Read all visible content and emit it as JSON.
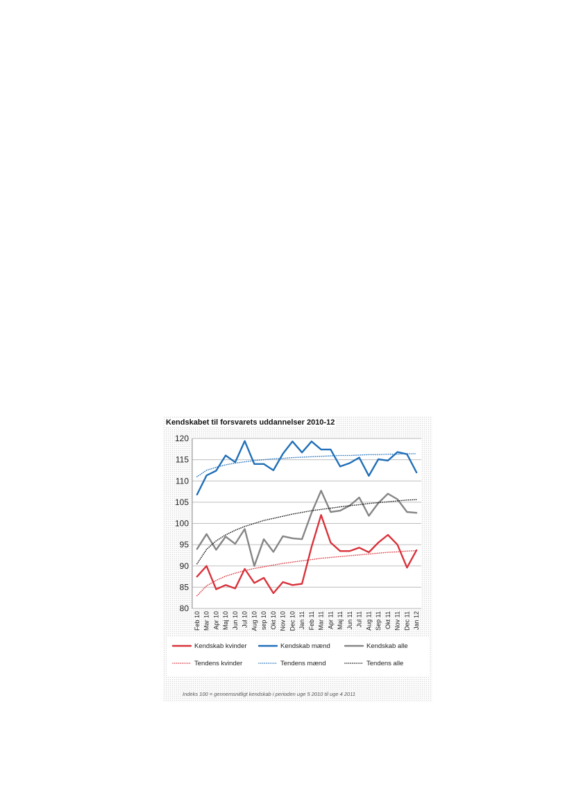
{
  "chart_data": {
    "type": "line",
    "title": "Kendskabet til forsvarets uddannelser 2010-12",
    "xlabel": "",
    "ylabel": "",
    "ylim": [
      80,
      120
    ],
    "yticks": [
      80,
      85,
      90,
      95,
      100,
      105,
      110,
      115,
      120
    ],
    "grid": true,
    "legend_position": "bottom",
    "categories": [
      "Feb 10",
      "Mar 10",
      "Apr 10",
      "Maj 10",
      "Jun 10",
      "Jul 10",
      "Aug 10",
      "sep 10",
      "Okt 10",
      "Nov 10",
      "Dec 10",
      "Jan 11",
      "Feb 11",
      "Mar 11",
      "Apr 11",
      "Maj 11",
      "Jun 11",
      "Jul 11",
      "Aug 11",
      "Sep 11",
      "Okt 11",
      "Nov 11",
      "Dec 11",
      "Jan 12"
    ],
    "series": [
      {
        "name": "Kendskab kvinder",
        "color": "#d9313a",
        "style": "solid",
        "values": [
          87.5,
          90,
          84.5,
          85.5,
          84.7,
          89.3,
          86,
          87.2,
          83.6,
          86.2,
          85.5,
          85.8,
          94.5,
          102,
          95.5,
          93.5,
          93.5,
          94.3,
          93.2,
          95.5,
          97.3,
          95,
          89.6,
          93.7
        ]
      },
      {
        "name": "Kendskab mænd",
        "color": "#1f6fb8",
        "style": "solid",
        "values": [
          106.8,
          111.3,
          112.4,
          116,
          114.4,
          119.4,
          114,
          114,
          112.5,
          116.4,
          119.3,
          116.7,
          119.3,
          117.4,
          117.4,
          113.4,
          114.2,
          115.5,
          111.2,
          115.1,
          114.8,
          116.8,
          116.3,
          112
        ]
      },
      {
        "name": "Kendskab alle",
        "color": "#858585",
        "style": "solid",
        "values": [
          94,
          97.5,
          93.8,
          96.9,
          95.2,
          98.7,
          90,
          96.3,
          93.3,
          97,
          96.5,
          96.3,
          102.5,
          107.7,
          102.7,
          103,
          104.2,
          106.1,
          101.8,
          104.8,
          107,
          105.7,
          102.7,
          102.5
        ]
      },
      {
        "name": "Tendens kvinder",
        "color": "#d9313a",
        "style": "dotted",
        "values": [
          83,
          85.3,
          86.6,
          87.6,
          88.3,
          88.9,
          89.4,
          89.8,
          90.2,
          90.6,
          90.9,
          91.2,
          91.5,
          91.8,
          92,
          92.2,
          92.4,
          92.6,
          92.8,
          93,
          93.2,
          93.3,
          93.5,
          93.6
        ]
      },
      {
        "name": "Tendens mænd",
        "color": "#1f6fb8",
        "style": "dotted",
        "values": [
          111,
          112.5,
          113.2,
          113.8,
          114.2,
          114.5,
          114.8,
          115,
          115.2,
          115.3,
          115.5,
          115.6,
          115.7,
          115.8,
          115.9,
          116,
          116,
          116.1,
          116.2,
          116.2,
          116.3,
          116.3,
          116.4,
          116.4
        ]
      },
      {
        "name": "Tendens alle",
        "color": "#111111",
        "style": "dotted",
        "values": [
          90.5,
          93.9,
          95.9,
          97.3,
          98.4,
          99.3,
          100,
          100.7,
          101.2,
          101.7,
          102.2,
          102.6,
          103,
          103.3,
          103.6,
          103.9,
          104.2,
          104.4,
          104.7,
          104.9,
          105.1,
          105.3,
          105.5,
          105.6
        ]
      }
    ],
    "footnote": "Indeks 100 = gennemsnitligt kendskab i perioden uge 5 2010 til uge 4 2011"
  }
}
